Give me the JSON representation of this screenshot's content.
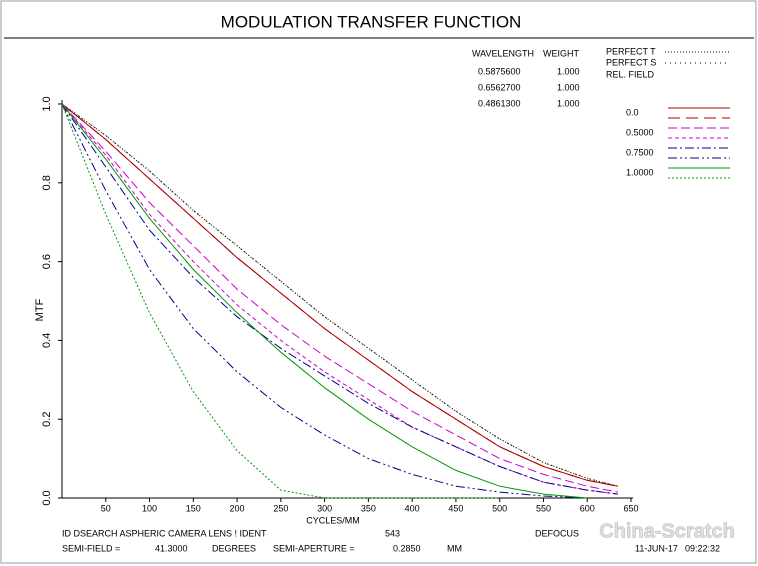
{
  "chart_data": {
    "type": "mtf",
    "title": "MODULATION TRANSFER FUNCTION",
    "x_label": "CYCLES/MM",
    "y_label": "MTF",
    "x": [
      0,
      50,
      100,
      150,
      200,
      250,
      300,
      350,
      400,
      450,
      500,
      550,
      600,
      635
    ],
    "xlim": [
      0,
      650
    ],
    "xticks": [
      50,
      100,
      150,
      200,
      250,
      300,
      350,
      400,
      450,
      500,
      550,
      600,
      650
    ],
    "ylim": [
      0,
      1
    ],
    "yticks": [
      {
        "value": 0,
        "label": "0.0"
      },
      0.2,
      0.4,
      0.6,
      0.8,
      {
        "value": 1,
        "label": "1.0"
      }
    ],
    "wavelength_table": {
      "header": [
        "WAVELENGTH",
        "WEIGHT"
      ],
      "rows": [
        [
          "0.5875600",
          "1.000"
        ],
        [
          "0.6562700",
          "1.000"
        ],
        [
          "0.4861300",
          "1.000"
        ]
      ]
    },
    "field_header": "REL. FIELD",
    "perfect": [
      {
        "name": "PERFECT T",
        "color": "#000000",
        "dash": "1,2",
        "values": [
          1,
          0.92,
          0.83,
          0.73,
          0.64,
          0.55,
          0.46,
          0.38,
          0.3,
          0.22,
          0.15,
          0.09,
          0.05,
          0.03
        ]
      },
      {
        "name": "PERFECT S",
        "color": "#000000",
        "dash": "1,4",
        "values": [
          1,
          0.92,
          0.83,
          0.73,
          0.64,
          0.55,
          0.46,
          0.38,
          0.3,
          0.22,
          0.15,
          0.09,
          0.05,
          0.03
        ]
      }
    ],
    "series": [
      {
        "name": "0.0",
        "color": "#b00000",
        "dash_t": "none",
        "dash_s": "12,6",
        "tangential": [
          1,
          0.91,
          0.81,
          0.71,
          0.61,
          0.52,
          0.43,
          0.35,
          0.27,
          0.2,
          0.13,
          0.08,
          0.045,
          0.03
        ],
        "sagittal": [
          1,
          0.91,
          0.81,
          0.71,
          0.61,
          0.52,
          0.43,
          0.35,
          0.27,
          0.2,
          0.13,
          0.08,
          0.045,
          0.03
        ]
      },
      {
        "name": "0.5000",
        "color": "#cc00cc",
        "dash_t": "9,4",
        "dash_s": "4,3",
        "tangential": [
          1,
          0.88,
          0.75,
          0.64,
          0.53,
          0.44,
          0.36,
          0.29,
          0.22,
          0.16,
          0.1,
          0.06,
          0.03,
          0.015
        ],
        "sagittal": [
          1,
          0.87,
          0.72,
          0.6,
          0.49,
          0.4,
          0.32,
          0.25,
          0.18,
          0.13,
          0.08,
          0.04,
          0.02,
          0.01
        ]
      },
      {
        "name": "0.7500",
        "color": "#00008b",
        "dash_t": "9,3,2,3",
        "dash_s": "9,3,2,3,2,3",
        "tangential": [
          1,
          0.84,
          0.68,
          0.56,
          0.46,
          0.38,
          0.31,
          0.24,
          0.18,
          0.13,
          0.08,
          0.04,
          0.02,
          0.01
        ],
        "sagittal": [
          1,
          0.78,
          0.58,
          0.43,
          0.32,
          0.23,
          0.16,
          0.1,
          0.06,
          0.03,
          0.015,
          0.005,
          0,
          null
        ]
      },
      {
        "name": "1.0000",
        "color": "#009900",
        "dash_t": "none",
        "dash_s": "2,2",
        "tangential": [
          1,
          0.86,
          0.71,
          0.58,
          0.47,
          0.37,
          0.28,
          0.2,
          0.13,
          0.07,
          0.03,
          0.01,
          0,
          null
        ],
        "sagittal": [
          1,
          0.72,
          0.47,
          0.27,
          0.12,
          0.02,
          0,
          0,
          0,
          0,
          0,
          null,
          null,
          null
        ]
      }
    ]
  },
  "footer": {
    "ident": "ID DSEARCH ASPHERIC CAMERA LENS ! IDENT",
    "ident_number": "543",
    "defocus": "DEFOCUS",
    "semi_field_label": "SEMI-FIELD =",
    "semi_field": "41.3000",
    "degrees": "DEGREES",
    "semi_aperture_label": "SEMI-APERTURE =",
    "semi_aperture": "0.2850",
    "mm": "MM",
    "date": "11-JUN-17",
    "time": "09:22:32"
  },
  "watermark": "China-Scratch"
}
